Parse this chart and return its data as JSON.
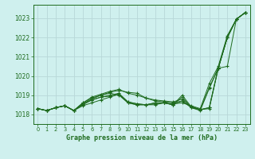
{
  "title": "Graphe pression niveau de la mer (hPa)",
  "bg_color": "#cff0ee",
  "grid_color": "#b8d8d8",
  "line_color": "#1e6b1e",
  "xlim": [
    -0.5,
    23.5
  ],
  "ylim": [
    1017.5,
    1023.7
  ],
  "yticks": [
    1018,
    1019,
    1020,
    1021,
    1022,
    1023
  ],
  "xticks": [
    0,
    1,
    2,
    3,
    4,
    5,
    6,
    7,
    8,
    9,
    10,
    11,
    12,
    13,
    14,
    15,
    16,
    17,
    18,
    19,
    20,
    21,
    22,
    23
  ],
  "series": [
    [
      1018.3,
      1018.2,
      1018.35,
      1018.45,
      1018.2,
      1018.45,
      1018.6,
      1018.75,
      1018.9,
      1019.05,
      1018.65,
      1018.55,
      1018.5,
      1018.6,
      1018.6,
      1018.55,
      1018.6,
      1018.45,
      1018.3,
      1019.6,
      1020.5,
      1022.1,
      1022.95,
      1023.3
    ],
    [
      1018.3,
      1018.2,
      1018.35,
      1018.45,
      1018.2,
      1018.55,
      1018.8,
      1019.0,
      1019.15,
      1019.25,
      1019.15,
      1019.1,
      1018.85,
      1018.75,
      1018.7,
      1018.65,
      1018.8,
      1018.4,
      1018.25,
      1018.35,
      1020.4,
      1020.5,
      1022.95,
      1023.3
    ],
    [
      1018.3,
      1018.2,
      1018.35,
      1018.45,
      1018.2,
      1018.6,
      1018.9,
      1019.05,
      1019.2,
      1019.3,
      1019.1,
      1019.0,
      1018.85,
      1018.7,
      1018.65,
      1018.6,
      1018.7,
      1018.35,
      1018.25,
      1019.4,
      1020.4,
      1022.0,
      1022.95,
      1023.3
    ],
    [
      1018.3,
      1018.2,
      1018.35,
      1018.45,
      1018.2,
      1018.6,
      1018.85,
      1019.0,
      1019.1,
      1019.0,
      1018.6,
      1018.5,
      1018.5,
      1018.5,
      1018.6,
      1018.5,
      1018.9,
      1018.35,
      1018.2,
      1019.35,
      1020.4,
      1022.0,
      1022.95,
      1023.3
    ],
    [
      1018.3,
      1018.2,
      1018.35,
      1018.45,
      1018.2,
      1018.5,
      1018.75,
      1018.9,
      1018.95,
      1019.05,
      1018.6,
      1018.5,
      1018.5,
      1018.6,
      1018.6,
      1018.5,
      1019.0,
      1018.4,
      1018.25,
      1018.3,
      1020.4,
      1022.0,
      1022.95,
      1023.3
    ],
    [
      1018.3,
      1018.2,
      1018.35,
      1018.45,
      1018.2,
      1018.55,
      1018.75,
      1018.9,
      1019.0,
      1019.1,
      1018.65,
      1018.55,
      1018.5,
      1018.55,
      1018.6,
      1018.5,
      1018.7,
      1018.4,
      1018.25,
      1018.35,
      1020.45,
      1022.0,
      1022.95,
      1023.3
    ]
  ]
}
